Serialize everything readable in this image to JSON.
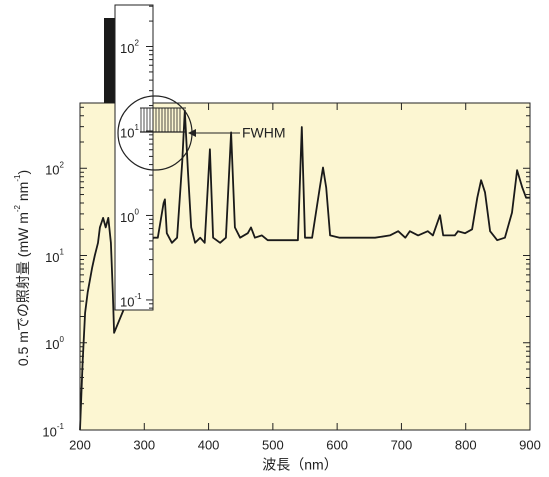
{
  "chart_data": {
    "type": "line",
    "x_label": "波長（nm）",
    "y_label": [
      "0.5 mでの照射量 (mW m",
      "-2",
      " nm",
      "-1",
      ")"
    ],
    "log_y": true,
    "background": "#fcf6d2",
    "color": "#1a1a1a",
    "xlim": [
      200,
      900
    ],
    "xticks": [
      200,
      300,
      400,
      500,
      600,
      700,
      800,
      900
    ],
    "ylim": [
      0.1,
      560
    ],
    "yticks": [
      {
        "value": 0.1,
        "label": "10",
        "exponent": "-1"
      },
      {
        "value": 1,
        "label": "10",
        "exponent": "0"
      },
      {
        "value": 10,
        "label": "10",
        "exponent": "1"
      },
      {
        "value": 100,
        "label": "10",
        "exponent": "2"
      }
    ],
    "x": [
      200,
      204,
      208,
      212,
      219,
      223,
      228,
      231,
      236,
      240,
      244,
      248,
      251,
      253,
      314,
      321,
      330,
      332,
      335,
      343,
      351,
      359,
      363,
      368,
      373,
      379,
      387,
      394,
      402,
      407,
      418,
      427,
      435,
      441,
      449,
      461,
      466,
      472,
      483,
      492,
      503,
      527,
      539,
      545,
      550,
      561,
      573,
      578,
      583,
      589,
      604,
      636,
      659,
      682,
      695,
      706,
      713,
      726,
      741,
      749,
      760,
      765,
      783,
      788,
      799,
      810,
      818,
      824,
      830,
      838,
      849,
      861,
      872,
      880,
      888,
      894,
      900
    ],
    "values": [
      0.1,
      0.59,
      2.2,
      3.8,
      7.3,
      10,
      14,
      21,
      27,
      21,
      27,
      14,
      3.8,
      1.3,
      16,
      16,
      40,
      44,
      18,
      14,
      16,
      117,
      460,
      90,
      21,
      14,
      16,
      14,
      165,
      16,
      14,
      16,
      258,
      21,
      16,
      18,
      21,
      16,
      17,
      15,
      15,
      15,
      15,
      297,
      16,
      16,
      60,
      102,
      60,
      17,
      16,
      16,
      16,
      17,
      19,
      16,
      19,
      17,
      19,
      17,
      29,
      17,
      17,
      19,
      18,
      20,
      46,
      73,
      53,
      19,
      15,
      16,
      31,
      95,
      60,
      46,
      46
    ],
    "inset": {
      "ylim": [
        0.076,
        310
      ],
      "yticks": [
        {
          "value": 0.1,
          "label": "10",
          "exponent": "-1"
        },
        {
          "value": 1,
          "label": "10",
          "exponent": "0"
        },
        {
          "value": 10,
          "label": "10",
          "exponent": "1"
        },
        {
          "value": 100,
          "label": "10",
          "exponent": "2"
        }
      ],
      "annotation": "FWHM"
    }
  }
}
